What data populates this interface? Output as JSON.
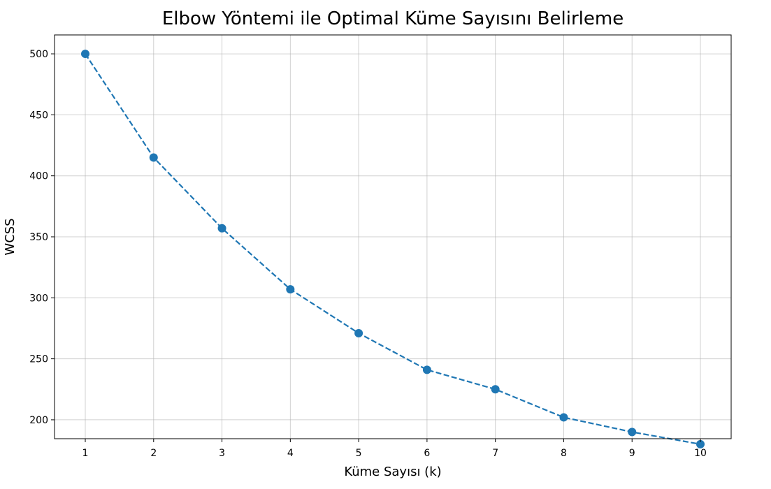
{
  "chart_data": {
    "type": "line",
    "title": "Elbow Yöntemi ile Optimal Küme Sayısını Belirleme",
    "xlabel": "Küme Sayısı (k)",
    "ylabel": "WCSS",
    "x": [
      1,
      2,
      3,
      4,
      5,
      6,
      7,
      8,
      9,
      10
    ],
    "xticks": [
      "1",
      "2",
      "3",
      "4",
      "5",
      "6",
      "7",
      "8",
      "9",
      "10"
    ],
    "yticks": [
      "200",
      "250",
      "300",
      "350",
      "400",
      "450",
      "500"
    ],
    "ytick_values": [
      200,
      250,
      300,
      350,
      400,
      450,
      500
    ],
    "xlim": [
      0.55,
      10.45
    ],
    "ylim": [
      184.5,
      515.5
    ],
    "series": [
      {
        "values": [
          500,
          415,
          357,
          307,
          271,
          241,
          225,
          202,
          190,
          180
        ],
        "color": "#1f77b4",
        "line_style": "dashed",
        "marker": "circle"
      }
    ],
    "grid": true
  }
}
